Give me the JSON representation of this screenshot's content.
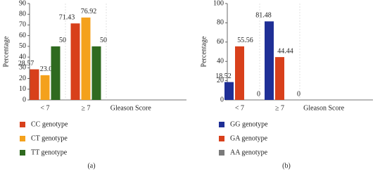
{
  "chart_data": [
    {
      "type": "bar",
      "subplot_label": "(a)",
      "ylabel": "Percentage",
      "xlabel": "Gleason Score",
      "categories": [
        "< 7",
        "≥ 7"
      ],
      "series": [
        {
          "name": "CC genotype",
          "color": "#d8401b",
          "values": [
            28.57,
            71.43
          ]
        },
        {
          "name": "CT genotype",
          "color": "#f4a11c",
          "values": [
            23.08,
            76.92
          ]
        },
        {
          "name": "TT genotype",
          "color": "#2f6a1f",
          "values": [
            50,
            50
          ]
        }
      ],
      "ylim": [
        0,
        90
      ],
      "yticks": [
        0,
        10,
        20,
        30,
        40,
        50,
        60,
        70,
        80,
        90
      ]
    },
    {
      "type": "bar",
      "subplot_label": "(b)",
      "ylabel": "Percentage",
      "xlabel": "Gleason Score",
      "categories": [
        "< 7",
        "≥ 7"
      ],
      "series": [
        {
          "name": "GG genotype",
          "color": "#1f2f96",
          "values": [
            18.52,
            81.48
          ]
        },
        {
          "name": "GA genotype",
          "color": "#d8401b",
          "values": [
            55.56,
            44.44
          ]
        },
        {
          "name": "AA genotype",
          "color": "#7a7a7a",
          "values": [
            0,
            0
          ]
        }
      ],
      "ylim": [
        0,
        100
      ],
      "yticks": [
        0,
        20,
        40,
        60,
        80,
        100
      ]
    }
  ]
}
